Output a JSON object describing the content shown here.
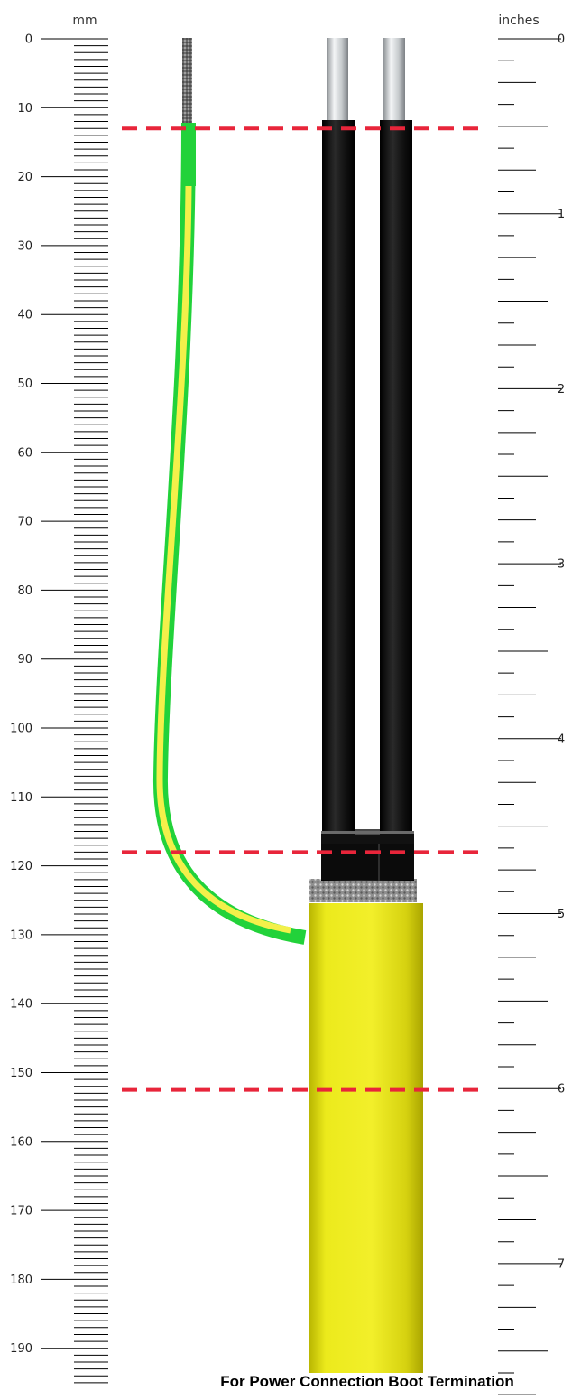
{
  "diagram": {
    "mm_scale": {
      "unit_label": "mm",
      "major_labels": [
        "0",
        "10",
        "20",
        "30",
        "40",
        "50",
        "60",
        "70",
        "80",
        "90",
        "100",
        "110",
        "120",
        "130",
        "140",
        "150",
        "160",
        "170",
        "180",
        "190"
      ]
    },
    "inch_scale": {
      "unit_label": "inches",
      "major_labels": [
        "0",
        "1",
        "2",
        "3",
        "4",
        "5",
        "6",
        "7"
      ]
    },
    "strip_marks_mm": [
      13,
      118,
      152.5
    ],
    "colors": {
      "mark_line": "#e8253a",
      "earth_green": "#22d23a",
      "earth_yellow": "#f3f04a",
      "conductor_insulation": "#111111",
      "outer_sheath": "#e7e41a",
      "screen_braid": "#9a9a9a",
      "bare_conductor": "#c9cdd0"
    },
    "caption": "For Power Connection Boot Termination"
  }
}
